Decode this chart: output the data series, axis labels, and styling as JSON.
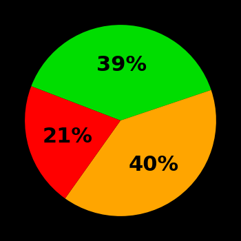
{
  "slices": [
    {
      "label": "39%",
      "value": 39,
      "color": "#00DD00"
    },
    {
      "label": "40%",
      "value": 40,
      "color": "#FFA500"
    },
    {
      "label": "21%",
      "value": 21,
      "color": "#FF0000"
    }
  ],
  "background_color": "#000000",
  "text_color": "#000000",
  "startangle": 159,
  "font_size": 22,
  "font_weight": "bold"
}
